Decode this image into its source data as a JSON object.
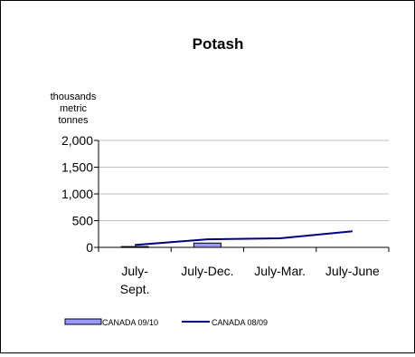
{
  "chart_data": {
    "type": "bar",
    "title": "Potash",
    "ylabel_lines": [
      "thousands",
      "metric",
      "tonnes"
    ],
    "categories": [
      [
        "July-",
        "Sept."
      ],
      [
        "July-Dec."
      ],
      [
        "July-Mar."
      ],
      [
        "July-June"
      ]
    ],
    "ylim": [
      0,
      2000
    ],
    "y_ticks": [
      0,
      500,
      1000,
      1500,
      2000
    ],
    "y_tick_labels": [
      "0",
      "500",
      "1,000",
      "1,500",
      "2,000"
    ],
    "grid": true,
    "legend_position": "bottom",
    "series": [
      {
        "name": "CANADA 09/10",
        "kind": "bar",
        "color": "#9999ff",
        "values": [
          15,
          80,
          null,
          null
        ]
      },
      {
        "name": "CANADA 08/09",
        "kind": "line",
        "color": "#000080",
        "values": [
          45,
          150,
          170,
          300
        ]
      }
    ]
  }
}
